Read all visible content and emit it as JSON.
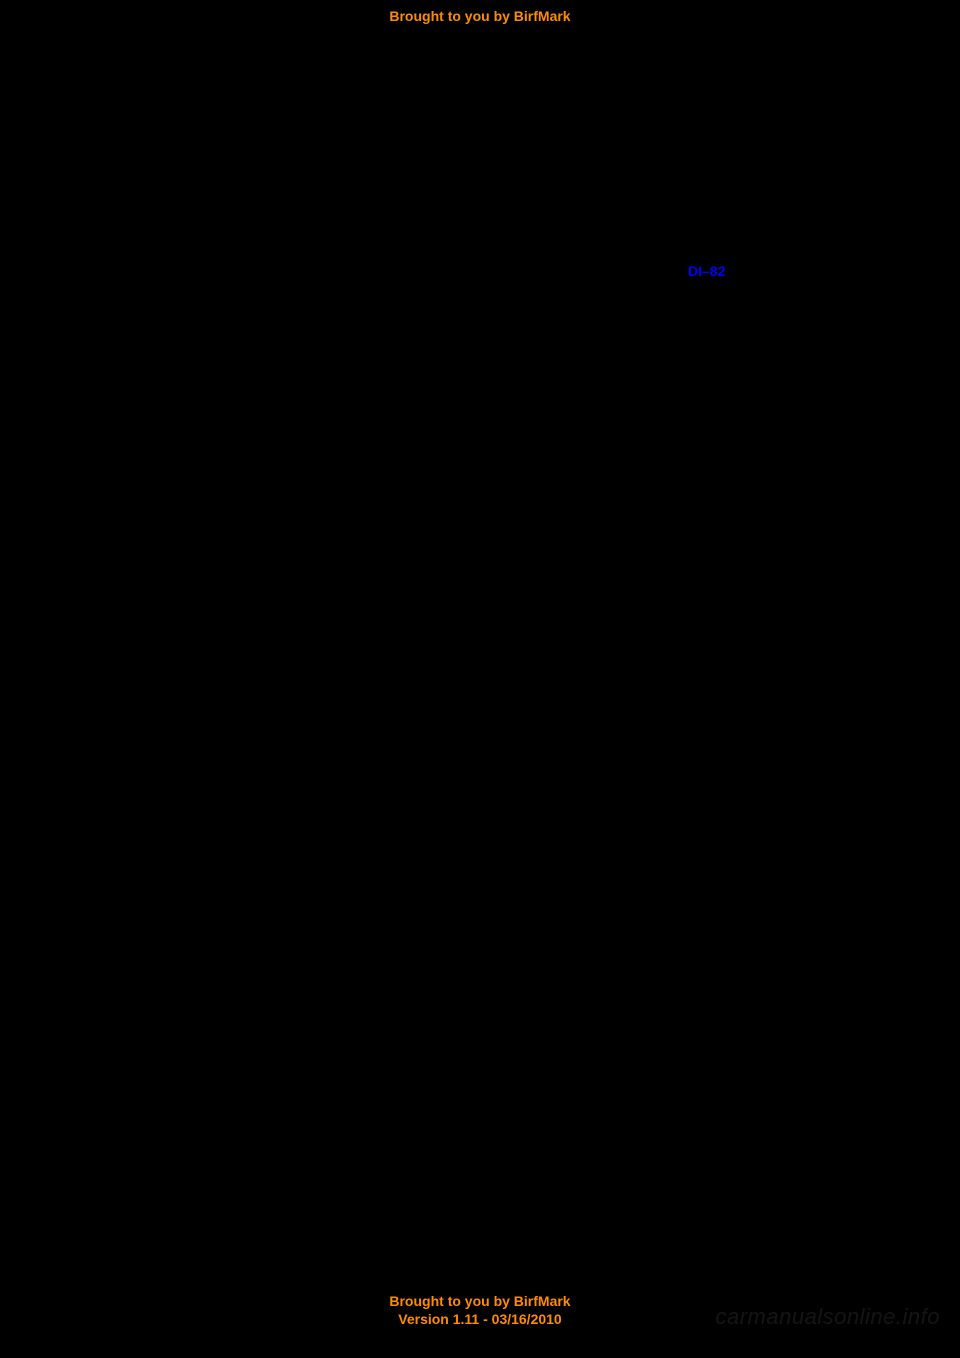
{
  "header": {
    "text": "Brought to you by BirfMark"
  },
  "content": {
    "page_ref": "DI–82"
  },
  "footer": {
    "line1": "Brought to you by BirfMark",
    "line2": "Version 1.11 - 03/16/2010"
  },
  "watermark": {
    "text": "carmanualsonline.info"
  },
  "colors": {
    "background": "#000000",
    "accent": "#ff8c00",
    "link": "#0000ff",
    "watermark": "rgba(255,255,255,0.08)"
  }
}
